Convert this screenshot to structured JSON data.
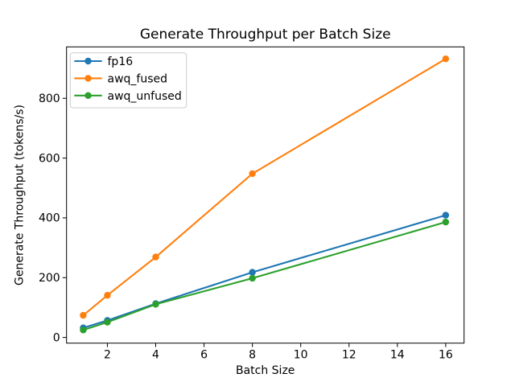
{
  "chart_data": {
    "type": "line",
    "title": "Generate Throughput per Batch Size",
    "xlabel": "Batch Size",
    "ylabel": "Generate Throughput (tokens/s)",
    "x": [
      1,
      2,
      4,
      8,
      16
    ],
    "series": [
      {
        "name": "fp16",
        "color": "#1f77b4",
        "values": [
          32,
          57,
          113,
          218,
          409
        ]
      },
      {
        "name": "awq_fused",
        "color": "#ff7f0e",
        "values": [
          74,
          141,
          269,
          548,
          932
        ]
      },
      {
        "name": "awq_unfused",
        "color": "#2ca02c",
        "values": [
          25,
          51,
          111,
          198,
          386
        ]
      }
    ],
    "xticks": [
      2,
      4,
      6,
      8,
      10,
      12,
      14,
      16
    ],
    "yticks": [
      0,
      200,
      400,
      600,
      800
    ],
    "xlim": [
      0.31,
      16.76
    ],
    "ylim": [
      -19,
      972
    ],
    "grid": false,
    "marker": "o",
    "legend": {
      "position": "upper left"
    },
    "colors": {
      "background": "#ffffff",
      "spine": "#000000",
      "legend_border": "#cccccc",
      "text": "#000000"
    }
  }
}
